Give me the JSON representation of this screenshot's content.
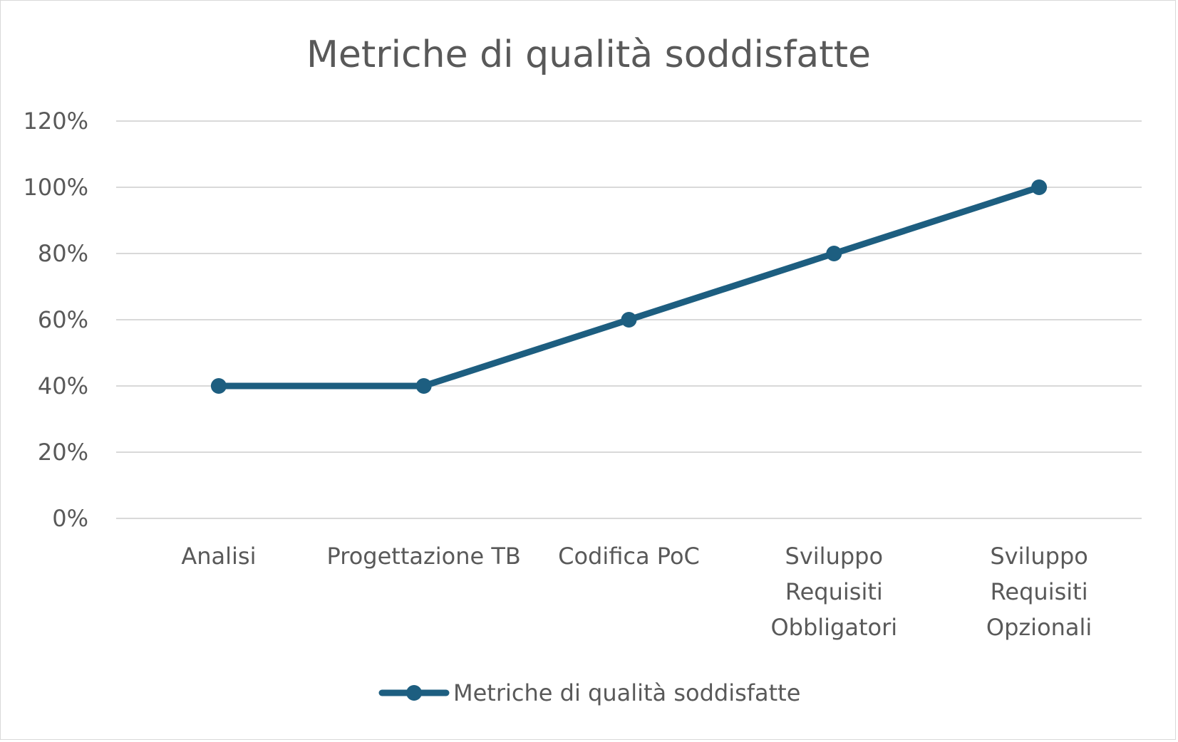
{
  "chart_data": {
    "type": "line",
    "title": "Metriche di qualità soddisfatte",
    "categories": [
      [
        "Analisi"
      ],
      [
        "Progettazione TB"
      ],
      [
        "Codifica PoC"
      ],
      [
        "Sviluppo",
        "Requisiti",
        "Obbligatori"
      ],
      [
        "Sviluppo",
        "Requisiti",
        "Opzionali"
      ]
    ],
    "series": [
      {
        "name": "Metriche di qualità soddisfatte",
        "values": [
          0.4,
          0.4,
          0.6,
          0.8,
          1.0
        ],
        "color": "#1d5e80"
      }
    ],
    "ylim": [
      0,
      1.2
    ],
    "yticks": [
      "0%",
      "20%",
      "40%",
      "60%",
      "80%",
      "100%",
      "120%"
    ],
    "grid": true,
    "legend": "bottom"
  }
}
